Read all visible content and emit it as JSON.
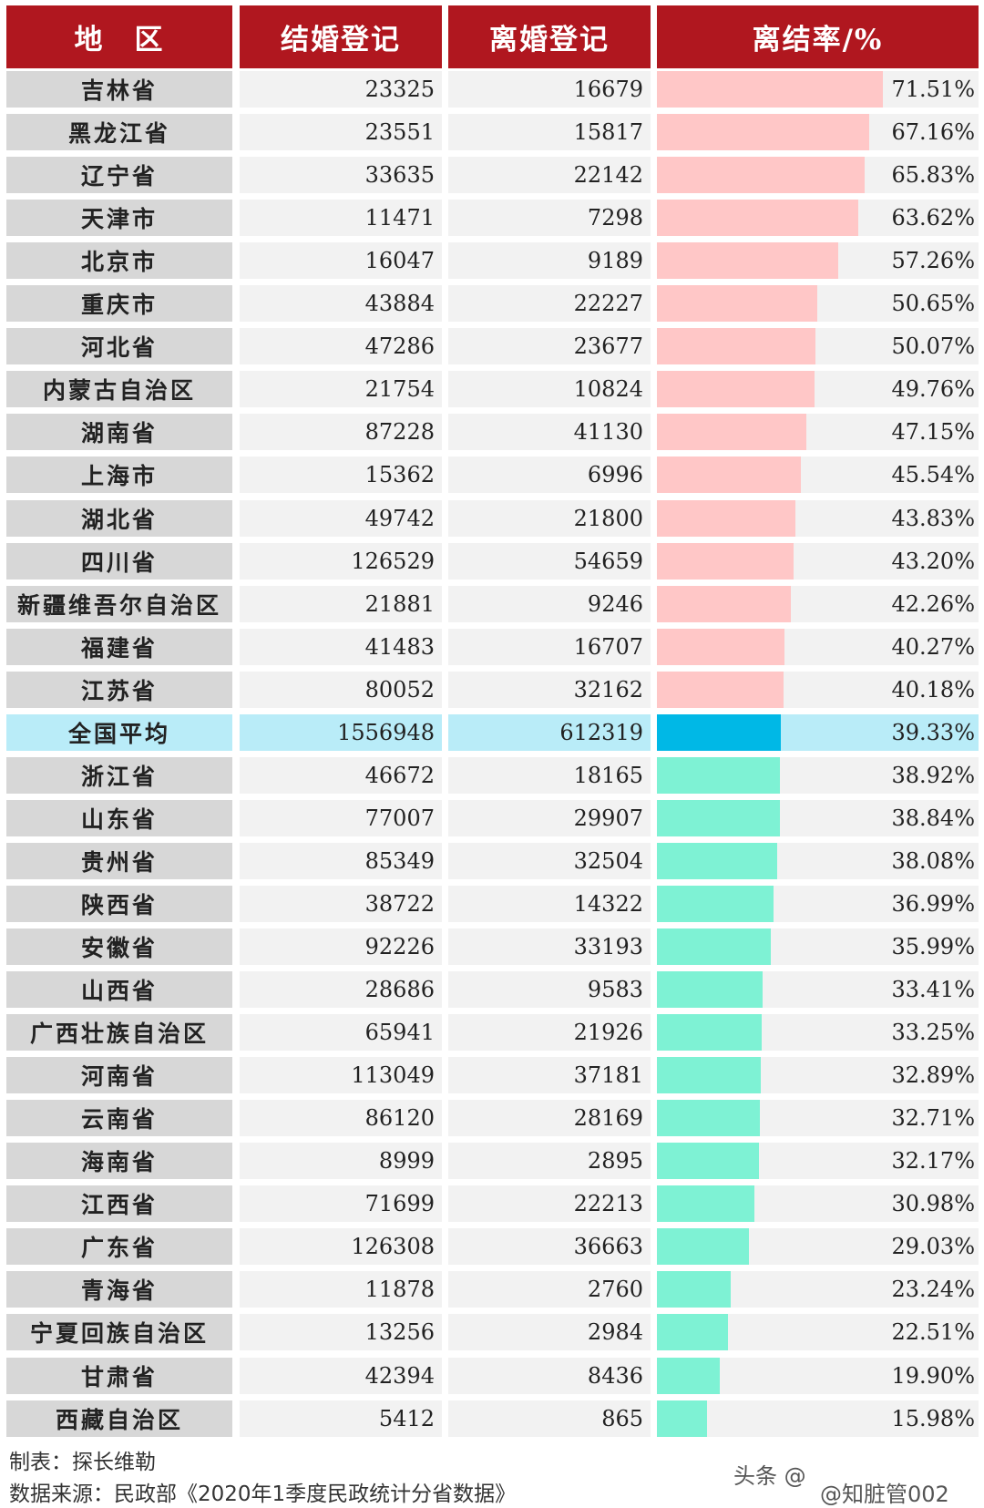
{
  "headers": {
    "region": "地　区",
    "marriage": "结婚登记",
    "divorce": "离婚登记",
    "rate": "离结率/%"
  },
  "colors": {
    "header_bg": "#b0171f",
    "above_avg_bar": "#ffc7c7",
    "average_bar": "#00b8e6",
    "below_avg_bar": "#7ef2d4",
    "average_row_bg": "#b9ecf8"
  },
  "chart_data": {
    "type": "table",
    "columns": [
      "地　区",
      "结婚登记",
      "离婚登记",
      "离结率/%"
    ],
    "rate_axis_max": 71.51,
    "average_index": 15,
    "rows": [
      {
        "region": "吉林省",
        "marriage": "23325",
        "divorce": "16679",
        "rate": 71.51,
        "rate_label": "71.51%"
      },
      {
        "region": "黑龙江省",
        "marriage": "23551",
        "divorce": "15817",
        "rate": 67.16,
        "rate_label": "67.16%"
      },
      {
        "region": "辽宁省",
        "marriage": "33635",
        "divorce": "22142",
        "rate": 65.83,
        "rate_label": "65.83%"
      },
      {
        "region": "天津市",
        "marriage": "11471",
        "divorce": "7298",
        "rate": 63.62,
        "rate_label": "63.62%"
      },
      {
        "region": "北京市",
        "marriage": "16047",
        "divorce": "9189",
        "rate": 57.26,
        "rate_label": "57.26%"
      },
      {
        "region": "重庆市",
        "marriage": "43884",
        "divorce": "22227",
        "rate": 50.65,
        "rate_label": "50.65%"
      },
      {
        "region": "河北省",
        "marriage": "47286",
        "divorce": "23677",
        "rate": 50.07,
        "rate_label": "50.07%"
      },
      {
        "region": "内蒙古自治区",
        "marriage": "21754",
        "divorce": "10824",
        "rate": 49.76,
        "rate_label": "49.76%"
      },
      {
        "region": "湖南省",
        "marriage": "87228",
        "divorce": "41130",
        "rate": 47.15,
        "rate_label": "47.15%"
      },
      {
        "region": "上海市",
        "marriage": "15362",
        "divorce": "6996",
        "rate": 45.54,
        "rate_label": "45.54%"
      },
      {
        "region": "湖北省",
        "marriage": "49742",
        "divorce": "21800",
        "rate": 43.83,
        "rate_label": "43.83%"
      },
      {
        "region": "四川省",
        "marriage": "126529",
        "divorce": "54659",
        "rate": 43.2,
        "rate_label": "43.20%"
      },
      {
        "region": "新疆维吾尔自治区",
        "marriage": "21881",
        "divorce": "9246",
        "rate": 42.26,
        "rate_label": "42.26%"
      },
      {
        "region": "福建省",
        "marriage": "41483",
        "divorce": "16707",
        "rate": 40.27,
        "rate_label": "40.27%"
      },
      {
        "region": "江苏省",
        "marriage": "80052",
        "divorce": "32162",
        "rate": 40.18,
        "rate_label": "40.18%"
      },
      {
        "region": "全国平均",
        "marriage": "1556948",
        "divorce": "612319",
        "rate": 39.33,
        "rate_label": "39.33%"
      },
      {
        "region": "浙江省",
        "marriage": "46672",
        "divorce": "18165",
        "rate": 38.92,
        "rate_label": "38.92%"
      },
      {
        "region": "山东省",
        "marriage": "77007",
        "divorce": "29907",
        "rate": 38.84,
        "rate_label": "38.84%"
      },
      {
        "region": "贵州省",
        "marriage": "85349",
        "divorce": "32504",
        "rate": 38.08,
        "rate_label": "38.08%"
      },
      {
        "region": "陕西省",
        "marriage": "38722",
        "divorce": "14322",
        "rate": 36.99,
        "rate_label": "36.99%"
      },
      {
        "region": "安徽省",
        "marriage": "92226",
        "divorce": "33193",
        "rate": 35.99,
        "rate_label": "35.99%"
      },
      {
        "region": "山西省",
        "marriage": "28686",
        "divorce": "9583",
        "rate": 33.41,
        "rate_label": "33.41%"
      },
      {
        "region": "广西壮族自治区",
        "marriage": "65941",
        "divorce": "21926",
        "rate": 33.25,
        "rate_label": "33.25%"
      },
      {
        "region": "河南省",
        "marriage": "113049",
        "divorce": "37181",
        "rate": 32.89,
        "rate_label": "32.89%"
      },
      {
        "region": "云南省",
        "marriage": "86120",
        "divorce": "28169",
        "rate": 32.71,
        "rate_label": "32.71%"
      },
      {
        "region": "海南省",
        "marriage": "8999",
        "divorce": "2895",
        "rate": 32.17,
        "rate_label": "32.17%"
      },
      {
        "region": "江西省",
        "marriage": "71699",
        "divorce": "22213",
        "rate": 30.98,
        "rate_label": "30.98%"
      },
      {
        "region": "广东省",
        "marriage": "126308",
        "divorce": "36663",
        "rate": 29.03,
        "rate_label": "29.03%"
      },
      {
        "region": "青海省",
        "marriage": "11878",
        "divorce": "2760",
        "rate": 23.24,
        "rate_label": "23.24%"
      },
      {
        "region": "宁夏回族自治区",
        "marriage": "13256",
        "divorce": "2984",
        "rate": 22.51,
        "rate_label": "22.51%"
      },
      {
        "region": "甘肃省",
        "marriage": "42394",
        "divorce": "8436",
        "rate": 19.9,
        "rate_label": "19.90%"
      },
      {
        "region": "西藏自治区",
        "marriage": "5412",
        "divorce": "865",
        "rate": 15.98,
        "rate_label": "15.98%"
      }
    ]
  },
  "footer": {
    "author": "制表：探长维勒",
    "source": "数据来源：民政部《2020年1季度民政统计分省数据》"
  },
  "watermark": {
    "text1": "头条 @",
    "text2": "@知脏管002"
  }
}
